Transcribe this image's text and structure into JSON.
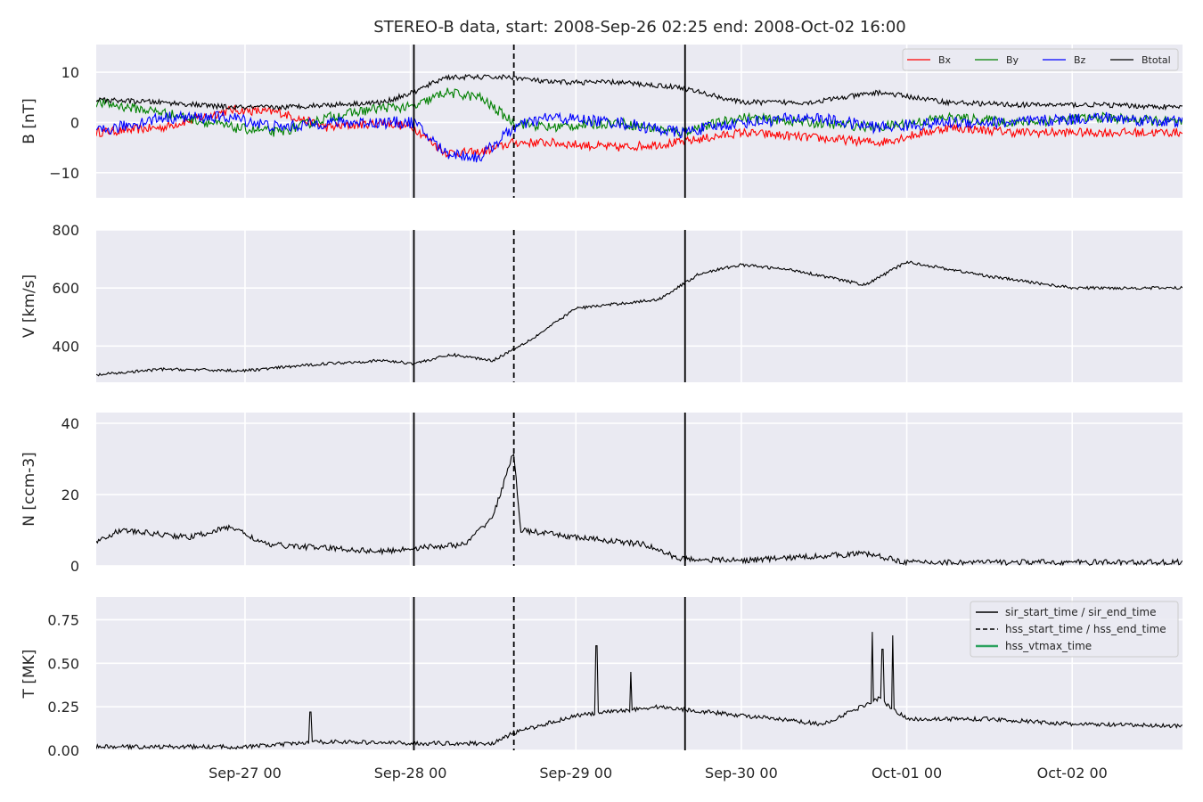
{
  "chart_data": {
    "type": "line",
    "title": "STEREO-B data, start: 2008-Sep-26 02:25  end: 2008-Oct-02 16:00",
    "x_range": [
      "2008-09-26 02:25",
      "2008-10-02 16:00"
    ],
    "x_tick_labels": [
      "Sep-27 00",
      "Sep-28 00",
      "Sep-29 00",
      "Sep-30 00",
      "Oct-01 00",
      "Oct-02 00"
    ],
    "x_ticks": [
      "2008-09-27 00:00",
      "2008-09-28 00:00",
      "2008-09-29 00:00",
      "2008-09-30 00:00",
      "2008-10-01 00:00",
      "2008-10-02 00:00"
    ],
    "grid": true,
    "events": {
      "sir_start_time": "2008-09-28 00:30",
      "hss_start_time": "2008-09-28 15:00",
      "sir_end_time": "2008-09-29 15:50",
      "hss_end_time": "2008-09-28 15:00"
    },
    "panels": [
      {
        "id": "B",
        "ylabel": "B [nT]",
        "ylim": [
          -15,
          15.5
        ],
        "yticks": [
          -10,
          0,
          10
        ],
        "ytick_labels": [
          "−10",
          "0",
          "10"
        ],
        "legend": {
          "placement": "top-right",
          "entries": [
            "Bx",
            "By",
            "Bz",
            "Btotal"
          ]
        },
        "series": [
          {
            "name": "Bx",
            "color": "#ff0000",
            "noise": 0.9,
            "x": [
              "2008-09-26 02:25",
              "2008-09-26 12:00",
              "2008-09-26 22:00",
              "2008-09-27 05:00",
              "2008-09-27 12:00",
              "2008-09-27 20:00",
              "2008-09-28 00:30",
              "2008-09-28 05:00",
              "2008-09-28 10:00",
              "2008-09-28 15:00",
              "2008-09-28 20:00",
              "2008-09-29 06:00",
              "2008-09-29 15:00",
              "2008-09-30 00:00",
              "2008-09-30 10:00",
              "2008-09-30 20:00",
              "2008-10-01 06:00",
              "2008-10-01 16:00",
              "2008-10-02 04:00",
              "2008-10-02 16:00"
            ],
            "y": [
              -2,
              -1,
              2.5,
              2,
              -1,
              0,
              -1,
              -6,
              -6,
              -4,
              -4,
              -5,
              -4,
              -2,
              -3,
              -4,
              -1,
              -2,
              -2,
              -2
            ]
          },
          {
            "name": "By",
            "color": "#008000",
            "noise": 1.0,
            "x": [
              "2008-09-26 02:25",
              "2008-09-26 12:00",
              "2008-09-26 22:00",
              "2008-09-27 05:00",
              "2008-09-27 12:00",
              "2008-09-27 20:00",
              "2008-09-28 00:30",
              "2008-09-28 05:00",
              "2008-09-28 10:00",
              "2008-09-28 15:00",
              "2008-09-28 20:00",
              "2008-09-29 06:00",
              "2008-09-29 15:00",
              "2008-09-30 00:00",
              "2008-09-30 10:00",
              "2008-09-30 20:00",
              "2008-10-01 06:00",
              "2008-10-01 16:00",
              "2008-10-02 04:00",
              "2008-10-02 16:00"
            ],
            "y": [
              4,
              2,
              -1,
              -2,
              1,
              3,
              3,
              6,
              5,
              0,
              -1,
              0,
              -2,
              1,
              0,
              -1,
              1,
              0,
              1,
              0
            ]
          },
          {
            "name": "Bz",
            "color": "#0000ff",
            "noise": 1.2,
            "x": [
              "2008-09-26 02:25",
              "2008-09-26 12:00",
              "2008-09-26 22:00",
              "2008-09-27 05:00",
              "2008-09-27 12:00",
              "2008-09-27 20:00",
              "2008-09-28 00:30",
              "2008-09-28 05:00",
              "2008-09-28 10:00",
              "2008-09-28 15:00",
              "2008-09-28 20:00",
              "2008-09-29 06:00",
              "2008-09-29 15:00",
              "2008-09-30 00:00",
              "2008-09-30 10:00",
              "2008-09-30 20:00",
              "2008-10-01 06:00",
              "2008-10-01 16:00",
              "2008-10-02 04:00",
              "2008-10-02 16:00"
            ],
            "y": [
              -2,
              1,
              1,
              -1,
              0,
              0,
              0,
              -6,
              -7,
              -1,
              1,
              0,
              -2,
              0,
              1,
              -1,
              0,
              0,
              1,
              0
            ]
          },
          {
            "name": "Btotal",
            "color": "#000000",
            "noise": 0.5,
            "x": [
              "2008-09-26 02:25",
              "2008-09-26 12:00",
              "2008-09-26 22:00",
              "2008-09-27 05:00",
              "2008-09-27 12:00",
              "2008-09-27 20:00",
              "2008-09-28 00:30",
              "2008-09-28 05:00",
              "2008-09-28 10:00",
              "2008-09-28 15:00",
              "2008-09-28 20:00",
              "2008-09-29 06:00",
              "2008-09-29 15:00",
              "2008-09-30 00:00",
              "2008-09-30 10:00",
              "2008-09-30 20:00",
              "2008-10-01 06:00",
              "2008-10-01 16:00",
              "2008-10-02 04:00",
              "2008-10-02 16:00"
            ],
            "y": [
              4.5,
              4,
              3,
              3,
              3.5,
              4,
              6,
              9,
              9,
              9,
              8,
              8,
              7,
              4,
              4,
              6,
              4,
              3.5,
              3.5,
              3
            ]
          }
        ]
      },
      {
        "id": "V",
        "ylabel": "V [km/s]",
        "ylim": [
          275,
          800
        ],
        "yticks": [
          400,
          600,
          800
        ],
        "ytick_labels": [
          "400",
          "600",
          "800"
        ],
        "series": [
          {
            "name": "V",
            "color": "#000000",
            "noise": 5,
            "x": [
              "2008-09-26 02:25",
              "2008-09-26 12:00",
              "2008-09-27 00:00",
              "2008-09-27 12:00",
              "2008-09-27 20:00",
              "2008-09-28 00:30",
              "2008-09-28 06:00",
              "2008-09-28 12:00",
              "2008-09-28 18:00",
              "2008-09-29 00:00",
              "2008-09-29 12:00",
              "2008-09-29 18:00",
              "2008-09-30 00:00",
              "2008-09-30 08:00",
              "2008-09-30 18:00",
              "2008-10-01 00:00",
              "2008-10-01 12:00",
              "2008-10-02 00:00",
              "2008-10-02 16:00"
            ],
            "y": [
              300,
              320,
              315,
              340,
              350,
              340,
              370,
              350,
              430,
              530,
              560,
              650,
              680,
              660,
              610,
              690,
              640,
              600,
              600
            ]
          }
        ]
      },
      {
        "id": "N",
        "ylabel": "N [ccm-3]",
        "ylim": [
          0,
          43
        ],
        "yticks": [
          0,
          20,
          40
        ],
        "ytick_labels": [
          "0",
          "20",
          "40"
        ],
        "series": [
          {
            "name": "N",
            "color": "#000000",
            "noise": 0.8,
            "x": [
              "2008-09-26 02:25",
              "2008-09-26 06:00",
              "2008-09-26 16:00",
              "2008-09-26 22:00",
              "2008-09-27 03:00",
              "2008-09-27 12:00",
              "2008-09-27 20:00",
              "2008-09-28 00:30",
              "2008-09-28 08:00",
              "2008-09-28 12:00",
              "2008-09-28 15:00",
              "2008-09-28 16:00",
              "2008-09-29 00:00",
              "2008-09-29 10:00",
              "2008-09-29 15:00",
              "2008-09-30 00:00",
              "2008-09-30 18:00",
              "2008-10-01 00:00",
              "2008-10-02 16:00"
            ],
            "y": [
              7,
              10,
              8,
              11,
              6,
              5,
              4,
              5,
              6,
              14,
              32,
              10,
              8,
              6,
              2,
              1.5,
              3.5,
              1,
              1
            ]
          }
        ]
      },
      {
        "id": "T",
        "ylabel": "T [MK]",
        "ylim": [
          0,
          0.88
        ],
        "yticks": [
          0,
          0.25,
          0.5,
          0.75
        ],
        "ytick_labels": [
          "0.00",
          "0.25",
          "0.50",
          "0.75"
        ],
        "legend": {
          "placement": "top-right",
          "entries": [
            "sir_start_time / sir_end_time",
            "hss_start_time / hss_end_time",
            "hss_vtmax_time"
          ]
        },
        "series": [
          {
            "name": "T",
            "color": "#000000",
            "noise": 0.012,
            "x": [
              "2008-09-26 02:25",
              "2008-09-27 00:00",
              "2008-09-27 12:00",
              "2008-09-28 00:30",
              "2008-09-28 12:00",
              "2008-09-28 15:00",
              "2008-09-29 00:00",
              "2008-09-29 12:00",
              "2008-09-30 00:00",
              "2008-09-30 12:00",
              "2008-09-30 20:00",
              "2008-10-01 00:00",
              "2008-10-01 12:00",
              "2008-10-02 00:00",
              "2008-10-02 16:00"
            ],
            "y": [
              0.02,
              0.02,
              0.05,
              0.04,
              0.04,
              0.1,
              0.2,
              0.25,
              0.2,
              0.15,
              0.3,
              0.18,
              0.18,
              0.15,
              0.14
            ],
            "spikes": [
              {
                "x": "2008-09-27 09:30",
                "y": 0.22
              },
              {
                "x": "2008-09-29 03:00",
                "y": 0.6
              },
              {
                "x": "2008-09-29 08:00",
                "y": 0.45
              },
              {
                "x": "2008-09-30 19:00",
                "y": 0.68
              },
              {
                "x": "2008-09-30 22:00",
                "y": 0.66
              },
              {
                "x": "2008-09-30 20:30",
                "y": 0.58
              }
            ]
          }
        ]
      }
    ]
  }
}
